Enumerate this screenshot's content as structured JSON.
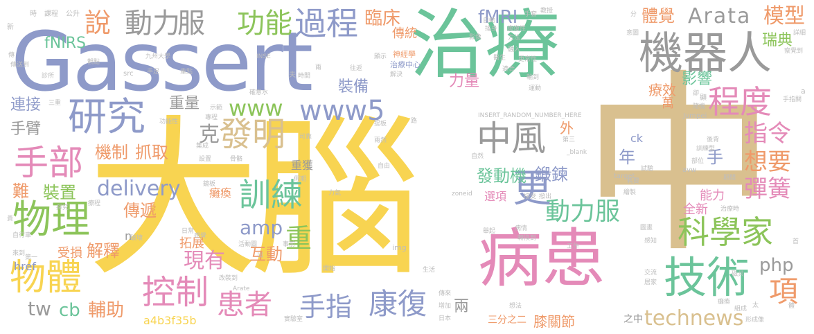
{
  "palette": {
    "yellow": "#f8d451",
    "teal": "#6bc49a",
    "slate": "#8e9ac9",
    "green": "#8cc45a",
    "orange": "#ef9a6a",
    "tan": "#d9c08f",
    "gray": "#9a9a9a",
    "pink": "#e48ab8",
    "lightgray": "#bdbdbd"
  },
  "words": [
    {
      "text": "大腦",
      "color": "yellow"
    },
    {
      "text": "中",
      "color": "tan"
    },
    {
      "text": "治療",
      "color": "teal"
    },
    {
      "text": "Gassert",
      "color": "slate"
    },
    {
      "text": "病患",
      "color": "pink"
    },
    {
      "text": "機器人",
      "color": "gray"
    },
    {
      "text": "技術",
      "color": "teal"
    },
    {
      "text": "物理",
      "color": "green"
    },
    {
      "text": "物體",
      "color": "yellow"
    },
    {
      "text": "研究",
      "color": "slate"
    },
    {
      "text": "科學家",
      "color": "green"
    },
    {
      "text": "手部",
      "color": "pink"
    },
    {
      "text": "發明",
      "color": "tan"
    },
    {
      "text": "中風",
      "color": "gray"
    },
    {
      "text": "控制",
      "color": "pink"
    },
    {
      "text": "患者",
      "color": "pink"
    },
    {
      "text": "康復",
      "color": "slate"
    },
    {
      "text": "訓練",
      "color": "teal"
    },
    {
      "text": "動力服",
      "color": "teal"
    },
    {
      "text": "程度",
      "color": "pink"
    },
    {
      "text": "手指",
      "color": "slate"
    },
    {
      "text": "動力",
      "color": "gray"
    },
    {
      "text": "服",
      "color": "gray"
    },
    {
      "text": "過程",
      "color": "slate"
    },
    {
      "text": "功能",
      "color": "green"
    },
    {
      "text": "說",
      "color": "orange"
    },
    {
      "text": "更",
      "color": "slate"
    },
    {
      "text": "technews",
      "color": "tan"
    },
    {
      "text": "www5",
      "color": "slate"
    },
    {
      "text": "Arata",
      "color": "gray"
    },
    {
      "text": "模型",
      "color": "orange"
    },
    {
      "text": "指令",
      "color": "pink"
    },
    {
      "text": "想要",
      "color": "orange"
    },
    {
      "text": "彈簧",
      "color": "pink"
    },
    {
      "text": "項",
      "color": "orange"
    },
    {
      "text": "php",
      "color": "gray"
    },
    {
      "text": "fMRI",
      "color": "slate"
    },
    {
      "text": "臨床",
      "color": "orange"
    },
    {
      "text": "體覺",
      "color": "orange"
    },
    {
      "text": "www",
      "color": "green"
    },
    {
      "text": "delivery",
      "color": "slate"
    },
    {
      "text": "amp",
      "color": "slate"
    },
    {
      "text": "現有",
      "color": "pink"
    },
    {
      "text": "重",
      "color": "green"
    },
    {
      "text": "互動",
      "color": "orange"
    },
    {
      "text": "傳遞",
      "color": "orange"
    },
    {
      "text": "裝置",
      "color": "green"
    },
    {
      "text": "機制",
      "color": "orange"
    },
    {
      "text": "抓取",
      "color": "orange"
    },
    {
      "text": "鍛鍊",
      "color": "slate"
    },
    {
      "text": "發動機",
      "color": "teal"
    },
    {
      "text": "年",
      "color": "slate"
    },
    {
      "text": "手",
      "color": "slate"
    },
    {
      "text": "解釋",
      "color": "orange"
    },
    {
      "text": "輔助",
      "color": "orange"
    },
    {
      "text": "cb",
      "color": "teal"
    },
    {
      "text": "tw",
      "color": "gray"
    },
    {
      "text": "手臂",
      "color": "gray"
    },
    {
      "text": "連接",
      "color": "slate"
    },
    {
      "text": "重量",
      "color": "gray"
    },
    {
      "text": "裝備",
      "color": "slate"
    },
    {
      "text": "力量",
      "color": "pink"
    },
    {
      "text": "影響",
      "color": "teal"
    },
    {
      "text": "fNIRS",
      "color": "teal"
    },
    {
      "text": "瑞典",
      "color": "green"
    },
    {
      "text": "膝關節",
      "color": "orange"
    },
    {
      "text": "兩",
      "color": "gray"
    },
    {
      "text": "難",
      "color": "orange"
    },
    {
      "text": "a4b3f35b",
      "color": "yellow"
    },
    {
      "text": "傳統",
      "color": "orange"
    },
    {
      "text": "克",
      "color": "gray"
    },
    {
      "text": "外",
      "color": "orange"
    },
    {
      "text": "拓展",
      "color": "orange"
    },
    {
      "text": "受損",
      "color": "orange"
    },
    {
      "text": "href",
      "color": "slate"
    },
    {
      "text": "療效",
      "color": "orange"
    },
    {
      "text": "萬",
      "color": "orange"
    },
    {
      "text": "全新",
      "color": "pink"
    },
    {
      "text": "能力",
      "color": "pink"
    },
    {
      "text": "選項",
      "color": "pink"
    },
    {
      "text": "重獲",
      "color": "gray"
    },
    {
      "text": "癱瘓",
      "color": "orange"
    },
    {
      "text": "三分之二",
      "color": "orange"
    },
    {
      "text": "之中",
      "color": "gray"
    },
    {
      "text": "ck",
      "color": "slate"
    },
    {
      "text": "n",
      "color": "gray"
    },
    {
      "text": "神經學",
      "color": "orange"
    },
    {
      "text": "治療中心",
      "color": "slate"
    },
    {
      "text": "INSERT_RANDOM_NUMBER_HERE",
      "color": "lightgray"
    },
    {
      "text": "zoneid",
      "color": "lightgray"
    },
    {
      "text": "img",
      "color": "lightgray"
    },
    {
      "text": "src",
      "color": "lightgray"
    },
    {
      "text": "Jumpei",
      "color": "lightgray"
    },
    {
      "text": "_blank",
      "color": "lightgray"
    },
    {
      "text": "target",
      "color": "lightgray"
    },
    {
      "text": "avw",
      "color": "lightgray"
    },
    {
      "text": "Arate",
      "color": "lightgray"
    },
    {
      "text": "INSE",
      "color": "lightgray"
    },
    {
      "text": "九州大學",
      "color": "lightgray"
    },
    {
      "text": "時",
      "color": "lightgray"
    },
    {
      "text": "課程",
      "color": "lightgray"
    },
    {
      "text": "公升",
      "color": "lightgray"
    },
    {
      "text": "新",
      "color": "lightgray"
    },
    {
      "text": "傳送到",
      "color": "lightgray"
    },
    {
      "text": "診所",
      "color": "lightgray"
    },
    {
      "text": "自行車",
      "color": "lightgray"
    },
    {
      "text": "來到",
      "color": "lightgray"
    },
    {
      "text": "第一",
      "color": "lightgray"
    },
    {
      "text": "日本",
      "color": "lightgray"
    },
    {
      "text": "實驗室",
      "color": "lightgray"
    },
    {
      "text": "增加",
      "color": "lightgray"
    },
    {
      "text": "傳來",
      "color": "lightgray"
    },
    {
      "text": "想法",
      "color": "lightgray"
    },
    {
      "text": "生活",
      "color": "lightgray"
    },
    {
      "text": "工作",
      "color": "lightgray"
    },
    {
      "text": "感知",
      "color": "lightgray"
    },
    {
      "text": "居家",
      "color": "lightgray"
    },
    {
      "text": "交流",
      "color": "lightgray"
    },
    {
      "text": "癱瘓",
      "color": "lightgray"
    },
    {
      "text": "組成",
      "color": "lightgray"
    },
    {
      "text": "形成像",
      "color": "lightgray"
    },
    {
      "text": "太",
      "color": "lightgray"
    },
    {
      "text": "耗費",
      "color": "lightgray"
    },
    {
      "text": "試驗",
      "color": "lightgray"
    },
    {
      "text": "訓練型",
      "color": "lightgray"
    },
    {
      "text": "後背",
      "color": "lightgray"
    },
    {
      "text": "部位",
      "color": "lightgray"
    },
    {
      "text": "手指關",
      "color": "lightgray"
    },
    {
      "text": "察覺到",
      "color": "lightgray"
    },
    {
      "text": "詳細",
      "color": "lightgray"
    },
    {
      "text": "意圖",
      "color": "lightgray"
    },
    {
      "text": "康復性",
      "color": "lightgray"
    },
    {
      "text": "方法",
      "color": "lightgray"
    },
    {
      "text": "融入",
      "color": "lightgray"
    },
    {
      "text": "更常性",
      "color": "lightgray"
    },
    {
      "text": "醫生",
      "color": "lightgray"
    },
    {
      "text": "適合",
      "color": "lightgray"
    },
    {
      "text": "運動",
      "color": "lightgray"
    },
    {
      "text": "輸到",
      "color": "lightgray"
    },
    {
      "text": "解決",
      "color": "lightgray"
    },
    {
      "text": "往返",
      "color": "lightgray"
    },
    {
      "text": "顯示",
      "color": "lightgray"
    },
    {
      "text": "影像",
      "color": "lightgray"
    },
    {
      "text": "搖身",
      "color": "lightgray"
    },
    {
      "text": "自動",
      "color": "lightgray"
    },
    {
      "text": "手套",
      "color": "lightgray"
    },
    {
      "text": "教授",
      "color": "lightgray"
    },
    {
      "text": "分",
      "color": "lightgray"
    },
    {
      "text": "觀點",
      "color": "lightgray"
    },
    {
      "text": "手足",
      "color": "lightgray"
    },
    {
      "text": "重點",
      "color": "lightgray"
    },
    {
      "text": "時間",
      "color": "lightgray"
    },
    {
      "text": "夫",
      "color": "lightgray"
    },
    {
      "text": "兩",
      "color": "lightgray"
    },
    {
      "text": "確意水",
      "color": "lightgray"
    },
    {
      "text": "三重",
      "color": "lightgray"
    },
    {
      "text": "示範",
      "color": "lightgray"
    },
    {
      "text": "專程",
      "color": "lightgray"
    },
    {
      "text": "功能性",
      "color": "lightgray"
    },
    {
      "text": "可靠",
      "color": "lightgray"
    },
    {
      "text": "設置",
      "color": "lightgray"
    },
    {
      "text": "骨骼",
      "color": "lightgray"
    },
    {
      "text": "集成",
      "color": "lightgray"
    },
    {
      "text": "提板",
      "color": "lightgray"
    },
    {
      "text": "自然",
      "color": "lightgray"
    },
    {
      "text": "兩然",
      "color": "lightgray"
    },
    {
      "text": "自由",
      "color": "lightgray"
    },
    {
      "text": "路",
      "color": "lightgray"
    },
    {
      "text": "鏡板",
      "color": "lightgray"
    },
    {
      "text": "假期",
      "color": "lightgray"
    },
    {
      "text": "力氣",
      "color": "lightgray"
    },
    {
      "text": "撥出",
      "color": "lightgray"
    },
    {
      "text": "接受",
      "color": "lightgray"
    },
    {
      "text": "療程",
      "color": "lightgray"
    },
    {
      "text": "探究",
      "color": "lightgray"
    },
    {
      "text": "日常",
      "color": "lightgray"
    },
    {
      "text": "活動圖",
      "color": "lightgray"
    },
    {
      "text": "事前",
      "color": "lightgray"
    },
    {
      "text": "出",
      "color": "lightgray"
    },
    {
      "text": "改裝到",
      "color": "lightgray"
    },
    {
      "text": "感覺",
      "color": "lightgray"
    },
    {
      "text": "開始",
      "color": "lightgray"
    },
    {
      "text": "病情",
      "color": "lightgray"
    },
    {
      "text": "舉起",
      "color": "lightgray"
    },
    {
      "text": "轉換到",
      "color": "lightgray"
    },
    {
      "text": "圖畫",
      "color": "lightgray"
    },
    {
      "text": "隨機",
      "color": "lightgray"
    },
    {
      "text": "治療時",
      "color": "lightgray"
    },
    {
      "text": "第三",
      "color": "lightgray"
    },
    {
      "text": "顯",
      "color": "lightgray"
    },
    {
      "text": "卻",
      "color": "lightgray"
    },
    {
      "text": "a",
      "color": "lightgray"
    },
    {
      "text": "期間",
      "color": "lightgray"
    },
    {
      "text": "繪製",
      "color": "lightgray"
    },
    {
      "text": "磁共",
      "color": "lightgray"
    },
    {
      "text": "首",
      "color": "lightgray"
    },
    {
      "text": "傳",
      "color": "lightgray"
    },
    {
      "text": "貴",
      "color": "lightgray"
    },
    {
      "text": "破壞",
      "color": "lightgray"
    },
    {
      "text": "體",
      "color": "lightgray"
    }
  ]
}
